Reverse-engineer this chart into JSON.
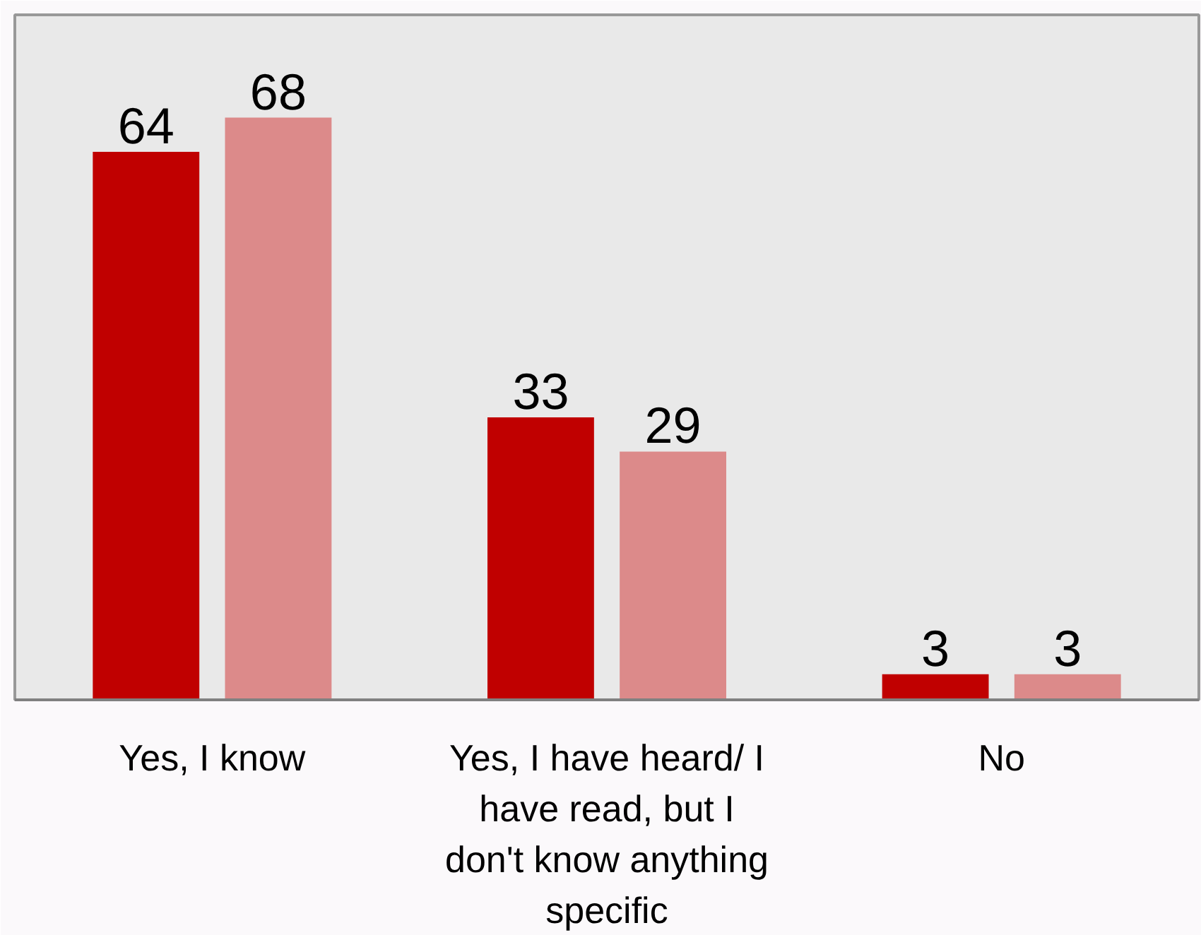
{
  "chart_data": {
    "type": "bar",
    "categories": [
      "Yes, I know",
      "Yes, I have heard/ I have read, but I don't know anything specific",
      "No"
    ],
    "series": [
      {
        "color": "#c00000",
        "values": [
          64,
          33,
          3
        ]
      },
      {
        "color": "#dc8a8a",
        "values": [
          68,
          29,
          3
        ]
      }
    ],
    "ylim": [
      0,
      80
    ],
    "tick_labels": "x",
    "data_labels": true
  }
}
